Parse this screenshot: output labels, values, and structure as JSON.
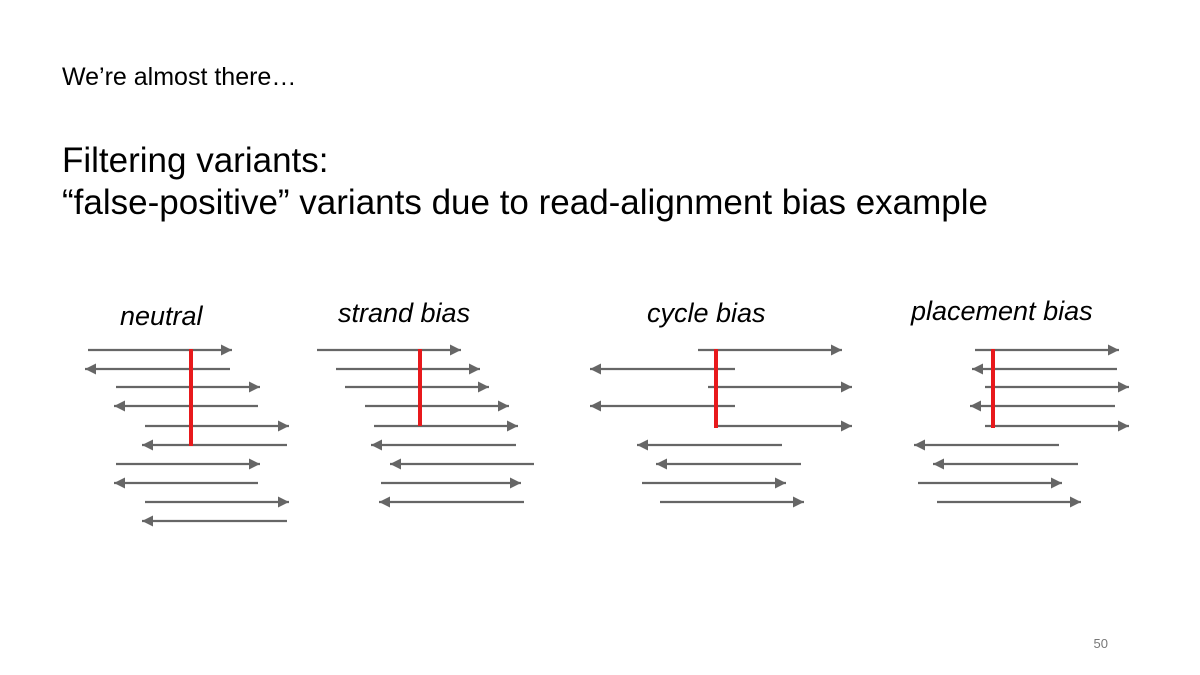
{
  "slide": {
    "subtitle": "We’re almost there…",
    "title_line1": "Filtering variants:",
    "title_line2": "“false-positive” variants due to read-alignment bias example",
    "page_number": "50"
  },
  "diagram": {
    "colors": {
      "read": "#666666",
      "variant": "#e8191c"
    },
    "panels": [
      {
        "label": "neutral"
      },
      {
        "label": "strand bias"
      },
      {
        "label": "cycle bias"
      },
      {
        "label": "placement bias"
      }
    ]
  }
}
